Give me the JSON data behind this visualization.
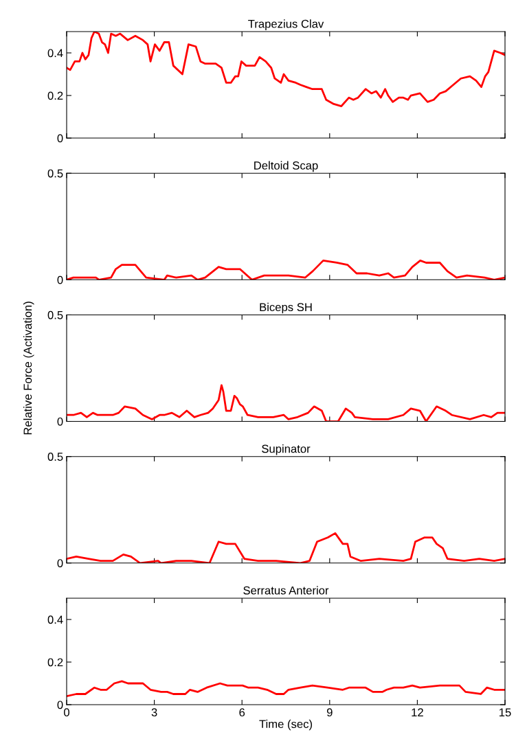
{
  "chart_data": [
    {
      "type": "line",
      "title": "Trapezius Clav",
      "xlim": [
        0,
        15
      ],
      "xticks": [
        0,
        3,
        6,
        9,
        12,
        15
      ],
      "ylim": [
        0,
        0.5
      ],
      "yticks": [
        0,
        0.2,
        0.4
      ],
      "tick_labels": "y",
      "grid": false,
      "series": [
        {
          "color": "#ff0000",
          "x": [
            0,
            0.12,
            0.28,
            0.44,
            0.54,
            0.64,
            0.75,
            0.85,
            0.95,
            1.1,
            1.21,
            1.31,
            1.42,
            1.52,
            1.68,
            1.83,
            2.09,
            2.35,
            2.61,
            2.77,
            2.87,
            3.02,
            3.18,
            3.34,
            3.5,
            3.65,
            3.96,
            4.17,
            4.42,
            4.58,
            4.73,
            5.1,
            5.3,
            5.46,
            5.62,
            5.77,
            5.87,
            5.98,
            6.14,
            6.44,
            6.6,
            6.81,
            7.0,
            7.12,
            7.33,
            7.43,
            7.59,
            7.84,
            8.0,
            8.2,
            8.41,
            8.73,
            8.88,
            9.14,
            9.4,
            9.66,
            9.81,
            9.97,
            10.23,
            10.43,
            10.59,
            10.75,
            10.9,
            11.0,
            11.16,
            11.37,
            11.52,
            11.68,
            11.78,
            12.09,
            12.35,
            12.56,
            12.77,
            12.97,
            13.23,
            13.49,
            13.8,
            14.01,
            14.19,
            14.32,
            14.43,
            14.63,
            14.84,
            15
          ],
          "values": [
            0.33,
            0.32,
            0.36,
            0.36,
            0.4,
            0.37,
            0.39,
            0.47,
            0.5,
            0.49,
            0.45,
            0.44,
            0.4,
            0.49,
            0.48,
            0.49,
            0.46,
            0.48,
            0.46,
            0.44,
            0.36,
            0.44,
            0.41,
            0.45,
            0.45,
            0.34,
            0.3,
            0.44,
            0.43,
            0.36,
            0.35,
            0.35,
            0.33,
            0.26,
            0.26,
            0.29,
            0.29,
            0.36,
            0.34,
            0.34,
            0.38,
            0.36,
            0.33,
            0.28,
            0.26,
            0.3,
            0.27,
            0.26,
            0.25,
            0.24,
            0.23,
            0.23,
            0.18,
            0.16,
            0.15,
            0.19,
            0.18,
            0.19,
            0.23,
            0.21,
            0.22,
            0.19,
            0.23,
            0.2,
            0.17,
            0.19,
            0.19,
            0.18,
            0.2,
            0.21,
            0.17,
            0.18,
            0.21,
            0.22,
            0.25,
            0.28,
            0.29,
            0.27,
            0.24,
            0.29,
            0.31,
            0.41,
            0.4,
            0.39
          ]
        }
      ]
    },
    {
      "type": "line",
      "title": "Deltoid Scap",
      "xlim": [
        0,
        15
      ],
      "xticks": [
        0,
        3,
        6,
        9,
        12,
        15
      ],
      "ylim": [
        0,
        0.5
      ],
      "yticks": [
        0,
        0.5
      ],
      "tick_labels": "y",
      "grid": false,
      "series": [
        {
          "color": "#ff0000",
          "x": [
            0,
            0.23,
            0.44,
            0.59,
            1.0,
            1.11,
            1.52,
            1.68,
            1.89,
            2.35,
            2.72,
            3.34,
            3.44,
            3.75,
            4.27,
            4.48,
            4.74,
            5.2,
            5.46,
            5.93,
            6.34,
            6.76,
            7.59,
            8.16,
            8.42,
            8.78,
            9.24,
            9.61,
            9.92,
            10.28,
            10.7,
            11.0,
            11.2,
            11.58,
            11.83,
            12.1,
            12.3,
            12.77,
            13.03,
            13.34,
            13.7,
            14.3,
            14.63,
            15
          ],
          "values": [
            0.0,
            0.01,
            0.01,
            0.01,
            0.01,
            0.0,
            0.01,
            0.05,
            0.07,
            0.07,
            0.01,
            0.0,
            0.02,
            0.01,
            0.02,
            0.0,
            0.01,
            0.06,
            0.05,
            0.05,
            0.0,
            0.02,
            0.02,
            0.01,
            0.04,
            0.09,
            0.08,
            0.07,
            0.03,
            0.03,
            0.02,
            0.03,
            0.01,
            0.02,
            0.06,
            0.09,
            0.08,
            0.08,
            0.04,
            0.01,
            0.02,
            0.01,
            0.0,
            0.01
          ]
        }
      ]
    },
    {
      "type": "line",
      "title": "Biceps SH",
      "ylabel": "Relative Force (Activation)",
      "xlim": [
        0,
        15
      ],
      "xticks": [
        0,
        3,
        6,
        9,
        12,
        15
      ],
      "ylim": [
        0,
        0.5
      ],
      "yticks": [
        0,
        0.5
      ],
      "tick_labels": "y",
      "grid": false,
      "series": [
        {
          "color": "#ff0000",
          "x": [
            0,
            0.23,
            0.49,
            0.69,
            0.9,
            1.06,
            1.58,
            1.78,
            1.99,
            2.35,
            2.61,
            2.92,
            3.18,
            3.34,
            3.6,
            3.86,
            4.11,
            4.37,
            4.58,
            4.84,
            5.0,
            5.2,
            5.3,
            5.36,
            5.46,
            5.62,
            5.74,
            5.82,
            5.93,
            6.03,
            6.19,
            6.55,
            7.07,
            7.43,
            7.59,
            7.9,
            8.26,
            8.47,
            8.73,
            8.88,
            9.29,
            9.55,
            9.76,
            9.86,
            10.48,
            11.0,
            11.52,
            11.78,
            12.09,
            12.3,
            12.66,
            12.97,
            13.18,
            13.8,
            14.27,
            14.53,
            14.74,
            15
          ],
          "values": [
            0.03,
            0.03,
            0.04,
            0.02,
            0.04,
            0.03,
            0.03,
            0.04,
            0.07,
            0.06,
            0.03,
            0.01,
            0.03,
            0.03,
            0.04,
            0.02,
            0.05,
            0.02,
            0.03,
            0.04,
            0.06,
            0.1,
            0.17,
            0.14,
            0.05,
            0.05,
            0.12,
            0.11,
            0.08,
            0.07,
            0.03,
            0.02,
            0.02,
            0.03,
            0.01,
            0.02,
            0.04,
            0.07,
            0.05,
            0.0,
            0.0,
            0.06,
            0.04,
            0.02,
            0.01,
            0.01,
            0.03,
            0.06,
            0.05,
            0.0,
            0.07,
            0.05,
            0.03,
            0.01,
            0.03,
            0.02,
            0.04,
            0.04
          ]
        }
      ]
    },
    {
      "type": "line",
      "title": "Supinator",
      "xlim": [
        0,
        15
      ],
      "xticks": [
        0,
        3,
        6,
        9,
        12,
        15
      ],
      "ylim": [
        0,
        0.5
      ],
      "yticks": [
        0,
        0.5
      ],
      "tick_labels": "y",
      "grid": false,
      "series": [
        {
          "color": "#ff0000",
          "x": [
            0,
            0.33,
            0.75,
            1.16,
            1.58,
            1.94,
            2.2,
            2.51,
            3.13,
            3.23,
            3.75,
            4.27,
            4.89,
            5.2,
            5.46,
            5.77,
            6.08,
            6.55,
            7.17,
            8.0,
            8.31,
            8.57,
            8.94,
            9.19,
            9.45,
            9.61,
            9.71,
            10.07,
            10.7,
            11.52,
            11.78,
            11.93,
            12.25,
            12.51,
            12.66,
            12.87,
            13.03,
            13.6,
            14.12,
            14.63,
            15
          ],
          "values": [
            0.02,
            0.03,
            0.02,
            0.01,
            0.01,
            0.04,
            0.03,
            0.0,
            0.01,
            0.0,
            0.01,
            0.01,
            0.0,
            0.1,
            0.09,
            0.09,
            0.02,
            0.01,
            0.01,
            0.0,
            0.01,
            0.1,
            0.12,
            0.14,
            0.09,
            0.09,
            0.03,
            0.01,
            0.02,
            0.01,
            0.02,
            0.1,
            0.12,
            0.12,
            0.09,
            0.07,
            0.02,
            0.01,
            0.02,
            0.01,
            0.02
          ]
        }
      ]
    },
    {
      "type": "line",
      "title": "Serratus Anterior",
      "xlabel": "Time (sec)",
      "xlim": [
        0,
        15
      ],
      "xticks": [
        0,
        3,
        6,
        9,
        12,
        15
      ],
      "ylim": [
        0,
        0.5
      ],
      "yticks": [
        0,
        0.2,
        0.4
      ],
      "grid": false,
      "series": [
        {
          "color": "#ff0000",
          "x": [
            0,
            0.33,
            0.64,
            0.95,
            1.16,
            1.37,
            1.63,
            1.89,
            2.1,
            2.3,
            2.61,
            2.87,
            3.23,
            3.44,
            3.65,
            4.06,
            4.22,
            4.48,
            4.79,
            5.25,
            5.5,
            6.02,
            6.22,
            6.55,
            6.86,
            7.17,
            7.43,
            7.59,
            8.0,
            8.41,
            8.93,
            9.45,
            9.66,
            10.23,
            10.48,
            10.8,
            10.95,
            11.2,
            11.52,
            11.83,
            12.09,
            12.77,
            13.44,
            13.65,
            14.17,
            14.38,
            14.63,
            15
          ],
          "values": [
            0.04,
            0.05,
            0.05,
            0.08,
            0.07,
            0.07,
            0.1,
            0.11,
            0.1,
            0.1,
            0.1,
            0.07,
            0.06,
            0.06,
            0.05,
            0.05,
            0.07,
            0.06,
            0.08,
            0.1,
            0.09,
            0.09,
            0.08,
            0.08,
            0.07,
            0.05,
            0.05,
            0.07,
            0.08,
            0.09,
            0.08,
            0.07,
            0.08,
            0.08,
            0.06,
            0.06,
            0.07,
            0.08,
            0.08,
            0.09,
            0.08,
            0.09,
            0.09,
            0.06,
            0.05,
            0.08,
            0.07,
            0.07
          ]
        }
      ]
    }
  ]
}
